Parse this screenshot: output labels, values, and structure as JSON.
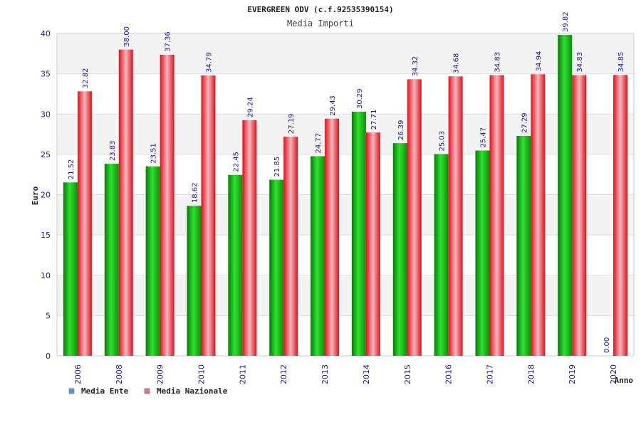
{
  "chart_data": {
    "type": "bar",
    "title": "EVERGREEN ODV (c.f.92535390154)",
    "subtitle": "Media Importi",
    "xlabel": "Anno",
    "ylabel": "Euro",
    "ylim": [
      0,
      40
    ],
    "yticks": [
      0,
      5,
      10,
      15,
      20,
      25,
      30,
      35,
      40
    ],
    "grid": true,
    "legend_position": "bottom-left",
    "categories": [
      "2006",
      "2008",
      "2009",
      "2010",
      "2011",
      "2012",
      "2013",
      "2014",
      "2015",
      "2016",
      "2017",
      "2018",
      "2019",
      "2020"
    ],
    "series": [
      {
        "name": "Media Ente",
        "legend_color": "#5b9bd5",
        "values": [
          21.52,
          23.83,
          23.51,
          18.62,
          22.45,
          21.85,
          24.77,
          30.29,
          26.39,
          25.03,
          25.47,
          27.29,
          39.82,
          0.0
        ],
        "labels": [
          "21.52",
          "23.83",
          "23.51",
          "18.62",
          "22.45",
          "21.85",
          "24.77",
          "30.29",
          "26.39",
          "25.03",
          "25.47",
          "27.29",
          "39.82",
          "0.00"
        ]
      },
      {
        "name": "Media Nazionale",
        "legend_color": "#d4729c",
        "values": [
          32.82,
          38.0,
          37.36,
          34.79,
          29.24,
          27.19,
          29.43,
          27.71,
          34.32,
          34.68,
          34.83,
          34.94,
          34.83,
          34.85
        ],
        "labels": [
          "32.82",
          "38.00",
          "37.36",
          "34.79",
          "29.24",
          "27.19",
          "29.43",
          "27.71",
          "34.32",
          "34.68",
          "34.83",
          "34.94",
          "34.83",
          "34.85"
        ]
      }
    ]
  }
}
